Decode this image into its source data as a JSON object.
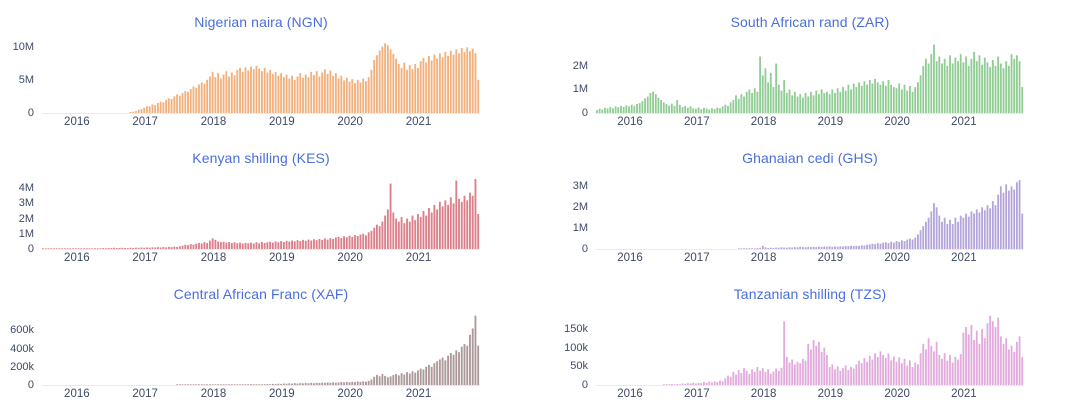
{
  "axis": {
    "text_color": "#3e4b66",
    "baseline_color": "#ebebeb"
  },
  "title_color": "#4a6edd",
  "chart_data": [
    {
      "id": "ngn",
      "type": "bar",
      "title": "Nigerian naira (NGN)",
      "title_color": "#4a6edd",
      "bar_color": "#f2b17c",
      "unit": "M",
      "ylim": [
        0,
        11
      ],
      "grid": false,
      "legend": "none",
      "x_range": [
        2015.49,
        2021.9
      ],
      "yticks": [
        {
          "v": 0,
          "label": "0"
        },
        {
          "v": 5,
          "label": "5M"
        },
        {
          "v": 10,
          "label": "10M"
        }
      ],
      "xticks": [
        {
          "v": 2016,
          "label": "2016"
        },
        {
          "v": 2017,
          "label": "2017"
        },
        {
          "v": 2018,
          "label": "2018"
        },
        {
          "v": 2019,
          "label": "2019"
        },
        {
          "v": 2020,
          "label": "2020"
        },
        {
          "v": 2021,
          "label": "2021"
        }
      ],
      "values": [
        0,
        0,
        0,
        0,
        0,
        0,
        0,
        0,
        0,
        0,
        0,
        0,
        0,
        0,
        0,
        0,
        0,
        0,
        0,
        0,
        0,
        0,
        0,
        0,
        0,
        0,
        0,
        0,
        0,
        0,
        0,
        0,
        0.15,
        0.2,
        0.3,
        0.5,
        0.6,
        0.8,
        1.0,
        1.0,
        1.3,
        1.2,
        1.5,
        1.7,
        1.6,
        2.0,
        2.2,
        2.1,
        2.5,
        2.8,
        2.6,
        3.0,
        3.3,
        3.2,
        3.6,
        4.0,
        3.8,
        4.3,
        4.6,
        4.4,
        5.0,
        5.5,
        6.2,
        5.4,
        6.0,
        5.2,
        5.8,
        6.3,
        5.5,
        6.1,
        5.7,
        6.5,
        6.8,
        6.2,
        6.9,
        6.4,
        7.0,
        6.6,
        7.1,
        6.7,
        6.3,
        6.8,
        6.1,
        6.5,
        5.9,
        6.2,
        5.6,
        6.0,
        5.4,
        5.8,
        5.2,
        5.6,
        5.0,
        5.5,
        6.0,
        5.3,
        5.8,
        5.4,
        6.2,
        5.7,
        6.3,
        5.5,
        6.1,
        6.6,
        5.9,
        6.4,
        5.6,
        6.0,
        5.2,
        5.6,
        4.9,
        5.3,
        4.7,
        5.1,
        4.5,
        5.0,
        4.6,
        5.2,
        4.8,
        5.4,
        6.5,
        8.0,
        8.7,
        9.4,
        10.0,
        10.5,
        10.2,
        9.6,
        8.9,
        8.2,
        7.4,
        6.8,
        7.6,
        6.5,
        7.2,
        6.6,
        7.4,
        6.8,
        7.8,
        8.3,
        7.6,
        8.6,
        7.9,
        8.8,
        8.2,
        9.0,
        8.4,
        9.2,
        8.6,
        9.4,
        8.8,
        9.6,
        9.0,
        9.8,
        9.2,
        9.9,
        9.3,
        9.7,
        9.0,
        5.0
      ]
    },
    {
      "id": "zar",
      "type": "bar",
      "title": "South African rand (ZAR)",
      "title_color": "#4a6edd",
      "bar_color": "#90cc93",
      "unit": "M",
      "ylim": [
        0,
        3.1
      ],
      "grid": false,
      "legend": "none",
      "x_range": [
        2015.49,
        2021.9
      ],
      "yticks": [
        {
          "v": 0,
          "label": "0"
        },
        {
          "v": 1,
          "label": "1M"
        },
        {
          "v": 2,
          "label": "2M"
        }
      ],
      "xticks": [
        {
          "v": 2016,
          "label": "2016"
        },
        {
          "v": 2017,
          "label": "2017"
        },
        {
          "v": 2018,
          "label": "2018"
        },
        {
          "v": 2019,
          "label": "2019"
        },
        {
          "v": 2020,
          "label": "2020"
        },
        {
          "v": 2021,
          "label": "2021"
        }
      ],
      "values": [
        0.12,
        0.18,
        0.15,
        0.22,
        0.19,
        0.25,
        0.2,
        0.28,
        0.24,
        0.3,
        0.26,
        0.32,
        0.28,
        0.35,
        0.3,
        0.38,
        0.42,
        0.5,
        0.62,
        0.7,
        0.85,
        0.9,
        0.8,
        0.65,
        0.55,
        0.45,
        0.38,
        0.32,
        0.4,
        0.3,
        0.55,
        0.35,
        0.25,
        0.3,
        0.22,
        0.28,
        0.2,
        0.18,
        0.24,
        0.16,
        0.22,
        0.19,
        0.15,
        0.2,
        0.17,
        0.23,
        0.2,
        0.28,
        0.35,
        0.3,
        0.45,
        0.55,
        0.75,
        0.6,
        0.8,
        0.7,
        0.9,
        1.0,
        0.85,
        1.05,
        0.9,
        2.4,
        1.6,
        1.9,
        1.3,
        1.7,
        1.1,
        2.1,
        1.2,
        0.95,
        1.4,
        0.85,
        1.0,
        0.75,
        0.9,
        0.7,
        0.8,
        0.65,
        0.85,
        0.7,
        0.9,
        0.75,
        0.95,
        0.8,
        1.0,
        0.85,
        0.9,
        0.8,
        1.0,
        0.85,
        1.05,
        0.9,
        1.1,
        0.95,
        1.2,
        1.0,
        1.25,
        1.1,
        1.3,
        1.15,
        1.35,
        1.2,
        1.4,
        1.25,
        1.45,
        1.3,
        1.2,
        1.35,
        1.15,
        1.4,
        1.2,
        1.1,
        1.05,
        1.25,
        1.0,
        1.2,
        0.95,
        1.15,
        0.9,
        1.1,
        1.3,
        1.6,
        2.0,
        2.3,
        2.1,
        2.5,
        2.9,
        2.2,
        2.4,
        2.1,
        2.3,
        2.0,
        2.45,
        2.1,
        2.35,
        2.2,
        2.5,
        2.15,
        2.4,
        2.0,
        2.3,
        2.6,
        2.2,
        2.45,
        2.05,
        2.35,
        2.15,
        1.95,
        2.25,
        2.0,
        2.4,
        2.1,
        1.9,
        2.2,
        2.0,
        2.5,
        2.3,
        2.45,
        2.2,
        1.1
      ]
    },
    {
      "id": "kes",
      "type": "bar",
      "title": "Kenyan shilling (KES)",
      "title_color": "#4a6edd",
      "bar_color": "#db7f8a",
      "unit": "M",
      "ylim": [
        0,
        4.8
      ],
      "grid": false,
      "legend": "none",
      "x_range": [
        2015.49,
        2021.9
      ],
      "yticks": [
        {
          "v": 0,
          "label": "0"
        },
        {
          "v": 1,
          "label": "1M"
        },
        {
          "v": 2,
          "label": "2M"
        },
        {
          "v": 3,
          "label": "3M"
        },
        {
          "v": 4,
          "label": "4M"
        }
      ],
      "xticks": [
        {
          "v": 2016,
          "label": "2016"
        },
        {
          "v": 2017,
          "label": "2017"
        },
        {
          "v": 2018,
          "label": "2018"
        },
        {
          "v": 2019,
          "label": "2019"
        },
        {
          "v": 2020,
          "label": "2020"
        },
        {
          "v": 2021,
          "label": "2021"
        }
      ],
      "values": [
        0.01,
        0.02,
        0.01,
        0.02,
        0.03,
        0.02,
        0.01,
        0.02,
        0.03,
        0.02,
        0.03,
        0.04,
        0.03,
        0.02,
        0.04,
        0.03,
        0.05,
        0.04,
        0.03,
        0.05,
        0.04,
        0.05,
        0.06,
        0.05,
        0.07,
        0.06,
        0.08,
        0.06,
        0.07,
        0.08,
        0.07,
        0.06,
        0.08,
        0.07,
        0.09,
        0.08,
        0.1,
        0.08,
        0.1,
        0.09,
        0.11,
        0.1,
        0.12,
        0.1,
        0.13,
        0.11,
        0.14,
        0.12,
        0.16,
        0.14,
        0.18,
        0.22,
        0.28,
        0.25,
        0.32,
        0.28,
        0.35,
        0.4,
        0.36,
        0.45,
        0.4,
        0.55,
        0.7,
        0.6,
        0.5,
        0.45,
        0.48,
        0.42,
        0.46,
        0.4,
        0.44,
        0.38,
        0.42,
        0.36,
        0.4,
        0.38,
        0.42,
        0.36,
        0.44,
        0.38,
        0.46,
        0.4,
        0.44,
        0.48,
        0.42,
        0.5,
        0.44,
        0.52,
        0.46,
        0.54,
        0.48,
        0.56,
        0.5,
        0.58,
        0.52,
        0.6,
        0.54,
        0.62,
        0.56,
        0.64,
        0.58,
        0.66,
        0.6,
        0.7,
        0.62,
        0.72,
        0.66,
        0.76,
        0.8,
        0.72,
        0.84,
        0.78,
        0.88,
        0.8,
        0.92,
        0.85,
        0.95,
        1.0,
        0.9,
        1.1,
        1.2,
        1.4,
        1.6,
        1.5,
        1.8,
        2.2,
        2.6,
        4.3,
        2.4,
        2.0,
        1.8,
        2.1,
        1.7,
        2.0,
        1.8,
        2.2,
        1.9,
        2.3,
        2.1,
        2.5,
        2.2,
        2.7,
        2.4,
        2.9,
        2.6,
        3.1,
        2.8,
        3.2,
        2.9,
        3.4,
        3.0,
        4.5,
        3.3,
        3.1,
        3.5,
        3.2,
        3.7,
        3.5,
        4.6,
        2.3
      ]
    },
    {
      "id": "ghs",
      "type": "bar",
      "title": "Ghanaian cedi (GHS)",
      "title_color": "#4a6edd",
      "bar_color": "#b3a4da",
      "unit": "M",
      "ylim": [
        0,
        3.5
      ],
      "grid": false,
      "legend": "none",
      "x_range": [
        2015.49,
        2021.9
      ],
      "yticks": [
        {
          "v": 0,
          "label": "0"
        },
        {
          "v": 1,
          "label": "1M"
        },
        {
          "v": 2,
          "label": "2M"
        },
        {
          "v": 3,
          "label": "3M"
        }
      ],
      "xticks": [
        {
          "v": 2016,
          "label": "2016"
        },
        {
          "v": 2017,
          "label": "2017"
        },
        {
          "v": 2018,
          "label": "2018"
        },
        {
          "v": 2019,
          "label": "2019"
        },
        {
          "v": 2020,
          "label": "2020"
        },
        {
          "v": 2021,
          "label": "2021"
        }
      ],
      "values": [
        0,
        0,
        0,
        0,
        0,
        0,
        0,
        0,
        0,
        0,
        0,
        0,
        0,
        0,
        0,
        0,
        0,
        0,
        0,
        0,
        0,
        0,
        0,
        0,
        0,
        0,
        0,
        0,
        0,
        0,
        0,
        0,
        0,
        0,
        0,
        0,
        0,
        0,
        0,
        0,
        0,
        0,
        0,
        0,
        0,
        0,
        0,
        0,
        0,
        0,
        0,
        0,
        0,
        0.01,
        0.02,
        0.01,
        0.02,
        0.03,
        0.02,
        0.03,
        0.04,
        0.06,
        0.15,
        0.08,
        0.05,
        0.06,
        0.05,
        0.07,
        0.06,
        0.08,
        0.07,
        0.06,
        0.08,
        0.07,
        0.09,
        0.08,
        0.1,
        0.09,
        0.08,
        0.1,
        0.09,
        0.1,
        0.09,
        0.11,
        0.1,
        0.12,
        0.11,
        0.13,
        0.1,
        0.12,
        0.11,
        0.13,
        0.12,
        0.14,
        0.13,
        0.15,
        0.14,
        0.16,
        0.15,
        0.18,
        0.16,
        0.2,
        0.22,
        0.25,
        0.23,
        0.28,
        0.26,
        0.3,
        0.32,
        0.28,
        0.35,
        0.3,
        0.38,
        0.34,
        0.42,
        0.38,
        0.45,
        0.5,
        0.45,
        0.55,
        0.7,
        0.9,
        1.1,
        1.3,
        1.5,
        1.8,
        2.2,
        2.0,
        1.6,
        1.3,
        1.5,
        1.2,
        1.4,
        1.2,
        1.5,
        1.3,
        1.6,
        1.5,
        1.7,
        1.55,
        1.8,
        1.7,
        1.9,
        1.75,
        2.0,
        1.85,
        2.1,
        1.95,
        2.3,
        2.1,
        2.6,
        3.0,
        2.7,
        3.1,
        2.8,
        3.0,
        2.85,
        3.2,
        3.3,
        1.7
      ]
    },
    {
      "id": "xaf",
      "type": "bar",
      "title": "Central African Franc (XAF)",
      "title_color": "#4a6edd",
      "bar_color": "#ad989a",
      "unit": "k",
      "ylim": [
        0,
        800
      ],
      "grid": false,
      "legend": "none",
      "x_range": [
        2015.49,
        2021.9
      ],
      "yticks": [
        {
          "v": 0,
          "label": "0"
        },
        {
          "v": 200,
          "label": "200k"
        },
        {
          "v": 400,
          "label": "400k"
        },
        {
          "v": 600,
          "label": "600k"
        }
      ],
      "xticks": [
        {
          "v": 2016,
          "label": "2016"
        },
        {
          "v": 2017,
          "label": "2017"
        },
        {
          "v": 2018,
          "label": "2018"
        },
        {
          "v": 2019,
          "label": "2019"
        },
        {
          "v": 2020,
          "label": "2020"
        },
        {
          "v": 2021,
          "label": "2021"
        }
      ],
      "values": [
        0,
        0,
        0,
        0,
        0,
        0,
        0,
        0,
        0,
        0,
        0,
        0,
        0,
        0,
        0,
        0,
        0,
        0,
        0,
        0,
        0,
        0,
        0,
        0,
        0,
        0,
        0,
        0,
        0,
        0,
        0,
        0,
        0,
        0,
        0,
        0,
        0,
        0,
        0,
        0,
        0,
        0,
        0,
        0,
        0,
        0,
        0,
        0,
        0,
        5,
        8,
        6,
        4,
        3,
        5,
        4,
        6,
        5,
        4,
        6,
        5,
        4,
        6,
        5,
        7,
        5,
        8,
        6,
        5,
        7,
        6,
        5,
        7,
        6,
        8,
        6,
        9,
        7,
        6,
        8,
        7,
        8,
        10,
        9,
        12,
        10,
        14,
        12,
        16,
        14,
        18,
        15,
        20,
        16,
        20,
        18,
        22,
        19,
        24,
        20,
        25,
        22,
        26,
        23,
        28,
        24,
        30,
        26,
        28,
        32,
        29,
        34,
        30,
        35,
        32,
        38,
        34,
        40,
        36,
        45,
        60,
        90,
        110,
        95,
        120,
        100,
        85,
        95,
        110,
        120,
        105,
        130,
        115,
        140,
        125,
        150,
        135,
        160,
        180,
        170,
        200,
        220,
        200,
        240,
        260,
        280,
        300,
        270,
        320,
        350,
        330,
        380,
        360,
        420,
        450,
        430,
        550,
        620,
        760,
        430
      ]
    },
    {
      "id": "tzs",
      "type": "bar",
      "title": "Tanzanian shilling (TZS)",
      "title_color": "#4a6edd",
      "bar_color": "#e2aadc",
      "unit": "k",
      "ylim": [
        0,
        195
      ],
      "grid": false,
      "legend": "none",
      "x_range": [
        2015.49,
        2021.9
      ],
      "yticks": [
        {
          "v": 0,
          "label": "0"
        },
        {
          "v": 50,
          "label": "50k"
        },
        {
          "v": 100,
          "label": "100k"
        },
        {
          "v": 150,
          "label": "150k"
        }
      ],
      "xticks": [
        {
          "v": 2016,
          "label": "2016"
        },
        {
          "v": 2017,
          "label": "2017"
        },
        {
          "v": 2018,
          "label": "2018"
        },
        {
          "v": 2019,
          "label": "2019"
        },
        {
          "v": 2020,
          "label": "2020"
        },
        {
          "v": 2021,
          "label": "2021"
        }
      ],
      "values": [
        0,
        0,
        0,
        0,
        0,
        0,
        0,
        0,
        0,
        0,
        0,
        0,
        0,
        0,
        0,
        0,
        0,
        0,
        0,
        0,
        0,
        0,
        0,
        0,
        0,
        1,
        2,
        1,
        3,
        2,
        3,
        2,
        4,
        3,
        5,
        4,
        6,
        4,
        6,
        5,
        8,
        6,
        9,
        7,
        10,
        8,
        12,
        10,
        18,
        25,
        22,
        35,
        28,
        40,
        32,
        45,
        38,
        30,
        42,
        35,
        48,
        38,
        45,
        35,
        42,
        30,
        36,
        44,
        38,
        46,
        170,
        75,
        60,
        68,
        55,
        62,
        58,
        70,
        65,
        110,
        95,
        120,
        105,
        115,
        88,
        100,
        80,
        48,
        55,
        42,
        50,
        38,
        45,
        52,
        40,
        48,
        44,
        55,
        65,
        58,
        72,
        62,
        78,
        68,
        85,
        75,
        90,
        80,
        72,
        84,
        66,
        76,
        62,
        74,
        58,
        70,
        52,
        66,
        48,
        60,
        55,
        85,
        110,
        95,
        125,
        105,
        90,
        115,
        80,
        70,
        85,
        65,
        80,
        60,
        75,
        68,
        82,
        140,
        155,
        135,
        160,
        120,
        145,
        110,
        150,
        125,
        165,
        185,
        170,
        155,
        180,
        130,
        110,
        125,
        95,
        105,
        88,
        115,
        130,
        75
      ]
    }
  ]
}
